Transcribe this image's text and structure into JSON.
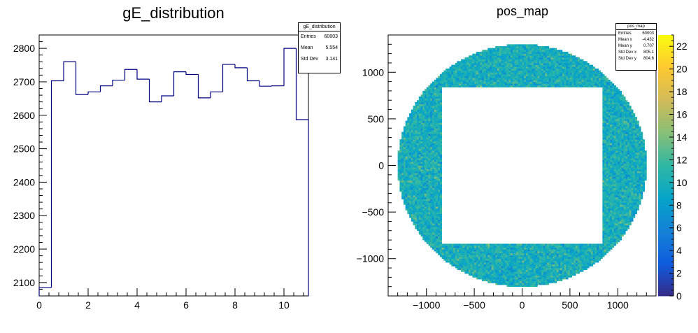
{
  "chart_data": [
    {
      "type": "bar",
      "title": "gE_distribution",
      "xlabel": "",
      "ylabel": "",
      "xlim": [
        0,
        11
      ],
      "ylim": [
        2060,
        2840
      ],
      "bin_edges": [
        0,
        0.5,
        1,
        1.5,
        2,
        2.5,
        3,
        3.5,
        4,
        4.5,
        5,
        5.5,
        6,
        6.5,
        7,
        7.5,
        8,
        8.5,
        9,
        9.5,
        10,
        10.5,
        11
      ],
      "values": [
        2085,
        2703,
        2760,
        2662,
        2670,
        2688,
        2705,
        2737,
        2708,
        2640,
        2658,
        2730,
        2722,
        2652,
        2670,
        2752,
        2742,
        2703,
        2687,
        2688,
        2800,
        2587
      ],
      "x_ticks": [
        "0",
        "2",
        "4",
        "6",
        "8",
        "10"
      ],
      "x_tick_values": [
        0,
        2,
        4,
        6,
        8,
        10
      ],
      "y_ticks": [
        "2100",
        "2200",
        "2300",
        "2400",
        "2500",
        "2600",
        "2700",
        "2800"
      ],
      "y_tick_values": [
        2100,
        2200,
        2300,
        2400,
        2500,
        2600,
        2700,
        2800
      ],
      "line_color": "#000080",
      "stats": {
        "title": "gE_distribution",
        "rows": [
          {
            "label": "Entries",
            "value": "60003"
          },
          {
            "label": "Mean",
            "value": "5.554"
          },
          {
            "label": "Std Dev",
            "value": "3.141"
          }
        ]
      }
    },
    {
      "type": "heatmap",
      "title": "pos_map",
      "xlabel": "",
      "ylabel": "",
      "xlim": [
        -1400,
        1400
      ],
      "ylim": [
        -1400,
        1400
      ],
      "x_ticks": [
        "−1000",
        "−500",
        "0",
        "500",
        "1000"
      ],
      "x_tick_values": [
        -1000,
        -500,
        0,
        500,
        1000
      ],
      "y_ticks": [
        "−1000",
        "−500",
        "0",
        "500",
        "1000"
      ],
      "y_tick_values": [
        -1000,
        -500,
        0,
        500,
        1000
      ],
      "disk_radius": 1300,
      "hole_half_width": 840,
      "cell_size": 20,
      "z_range": [
        0,
        23
      ],
      "colorbar_ticks": [
        "0",
        "2",
        "4",
        "6",
        "8",
        "10",
        "12",
        "14",
        "16",
        "18",
        "20",
        "22"
      ],
      "colorbar_tick_values": [
        0,
        2,
        4,
        6,
        8,
        10,
        12,
        14,
        16,
        18,
        20,
        22
      ],
      "palette": [
        "#352a87",
        "#0f5cdd",
        "#1481d6",
        "#06a4ca",
        "#2eb7a4",
        "#87bf77",
        "#d1bb59",
        "#fec832",
        "#f9fb0e"
      ],
      "stats": {
        "title": "pos_map",
        "rows": [
          {
            "label": "Entries",
            "value": "60003"
          },
          {
            "label": "Mean x",
            "value": "-4.432"
          },
          {
            "label": "Mean y",
            "value": "0.707"
          },
          {
            "label": "Std Dev x",
            "value": "805.1"
          },
          {
            "label": "Std Dev y",
            "value": "804.6"
          }
        ]
      }
    }
  ]
}
